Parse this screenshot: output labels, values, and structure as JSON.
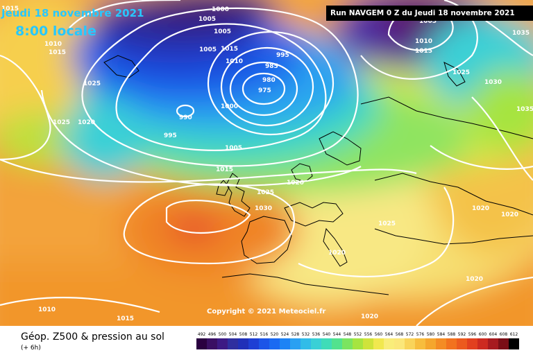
{
  "header": {
    "date": "Jeudi 18 novembre 2021",
    "time": "8:00 locale",
    "run": "Run NAVGEM 0 Z du Jeudi 18 novembre 2021"
  },
  "copyright": "Copyright © 2021 Meteociel.fr",
  "legend": {
    "title": "Géop. Z500 & pression au sol",
    "subtitle": "(+ 6h)",
    "scale_values": [
      "492",
      "496",
      "500",
      "504",
      "508",
      "512",
      "516",
      "520",
      "524",
      "528",
      "532",
      "536",
      "540",
      "544",
      "548",
      "552",
      "556",
      "560",
      "564",
      "568",
      "572",
      "576",
      "580",
      "584",
      "588",
      "592",
      "596",
      "600",
      "604",
      "608",
      "612"
    ],
    "scale_colors": [
      "#2a0040",
      "#3a0f63",
      "#3d1a84",
      "#2f2f9f",
      "#2030b8",
      "#1e3fd4",
      "#1c55e8",
      "#1a6af2",
      "#1d83f5",
      "#2aa0f2",
      "#31bce8",
      "#3ad0d6",
      "#3fdcb8",
      "#52e28e",
      "#7be460",
      "#a6e440",
      "#cfe33b",
      "#f1e84f",
      "#f9ed7a",
      "#fbe77a",
      "#f9d45a",
      "#f7bd3d",
      "#f5a62d",
      "#f48c24",
      "#f2721e",
      "#ec5a1e",
      "#e2401f",
      "#cd2a20",
      "#a71a1f",
      "#7a0e16",
      "#000000"
    ]
  },
  "pressure_labels": [
    "1015",
    "1000",
    "1010",
    "1015",
    "1005",
    "1005",
    "1005",
    "1015",
    "1010",
    "985",
    "995",
    "980",
    "975",
    "1000",
    "990",
    "995",
    "1025",
    "1025",
    "1020",
    "1005",
    "1015",
    "1020",
    "1025",
    "1030",
    "1025",
    "1020",
    "1020",
    "1020",
    "1020",
    "1010",
    "1015",
    "1020",
    "1025",
    "1030",
    "1035",
    "1035",
    "1005",
    "1010",
    "1015"
  ]
}
